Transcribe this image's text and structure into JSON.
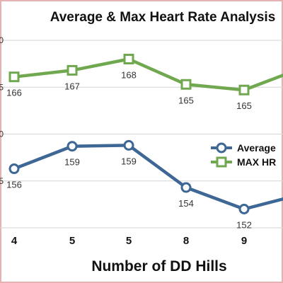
{
  "chart_data": {
    "type": "line",
    "title": "Average & Max Heart Rate Analysis",
    "xlabel": "Number of DD Hills",
    "ylabel": "",
    "categories": [
      "4",
      "5",
      "5",
      "8",
      "9",
      ""
    ],
    "yticks": [
      "",
      "5",
      "0",
      "5",
      "0"
    ],
    "ylim": [
      150,
      170
    ],
    "grid": true,
    "legend": "right",
    "series": [
      {
        "name": "MAX HR",
        "color": "#70a84f",
        "marker": "square",
        "values": [
          166.1,
          166.8,
          168,
          165.3,
          164.7,
          166.9
        ],
        "labels": [
          "166",
          "167",
          "168",
          "165",
          "165",
          ""
        ]
      },
      {
        "name": "Average",
        "color": "#3e6796",
        "marker": "circle",
        "values": [
          156.3,
          158.7,
          158.8,
          154.3,
          152.0,
          153.5
        ],
        "labels": [
          "156",
          "159",
          "159",
          "154",
          "152",
          ""
        ]
      }
    ]
  }
}
